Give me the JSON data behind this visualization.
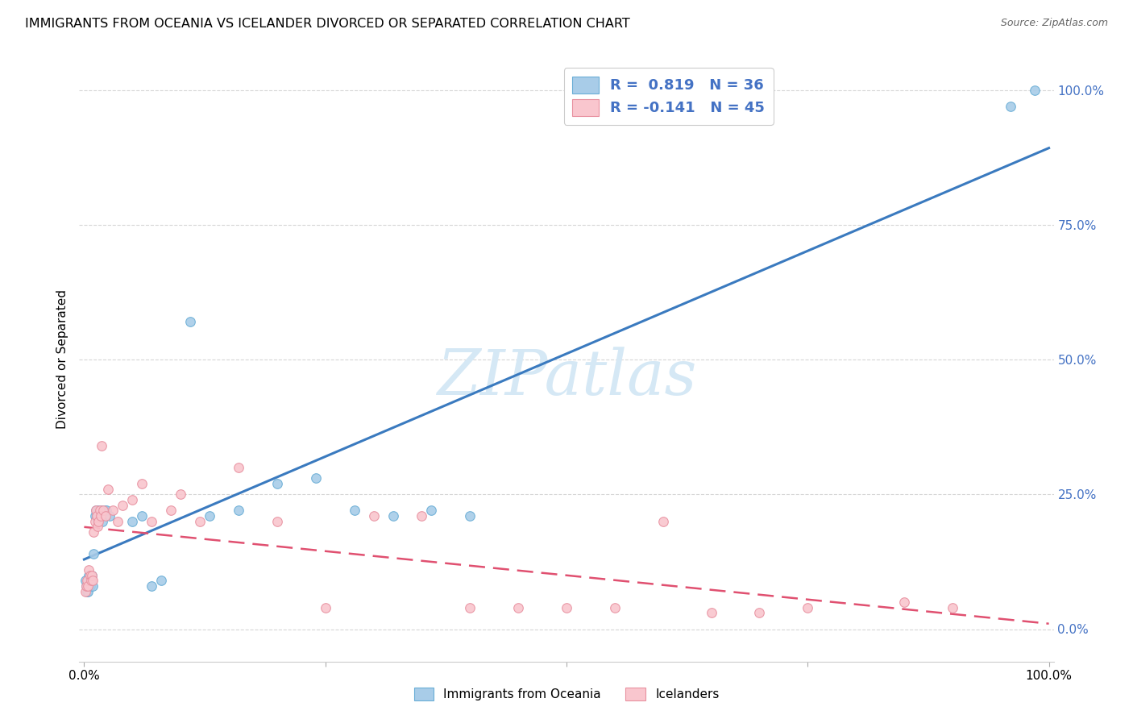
{
  "title": "IMMIGRANTS FROM OCEANIA VS ICELANDER DIVORCED OR SEPARATED CORRELATION CHART",
  "source": "Source: ZipAtlas.com",
  "ylabel": "Divorced or Separated",
  "legend_label_blue": "Immigrants from Oceania",
  "legend_label_pink": "Icelanders",
  "blue_scatter_color": "#a8cce8",
  "blue_edge_color": "#6aaed6",
  "blue_line_color": "#3a7abf",
  "pink_scatter_color": "#f9c6ce",
  "pink_edge_color": "#e891a0",
  "pink_line_color": "#e05070",
  "watermark_color": "#d5e8f5",
  "grid_color": "#cccccc",
  "bg_color": "#ffffff",
  "right_tick_color": "#4472C4",
  "marker_size": 70,
  "blue_x": [
    0.001,
    0.002,
    0.003,
    0.004,
    0.005,
    0.006,
    0.007,
    0.008,
    0.009,
    0.01,
    0.011,
    0.012,
    0.013,
    0.014,
    0.015,
    0.016,
    0.018,
    0.019,
    0.021,
    0.023,
    0.026,
    0.11,
    0.13,
    0.16,
    0.2,
    0.24,
    0.28,
    0.32,
    0.36,
    0.4,
    0.96,
    0.985,
    0.05,
    0.06,
    0.07,
    0.08
  ],
  "blue_y": [
    0.09,
    0.08,
    0.07,
    0.07,
    0.1,
    0.08,
    0.09,
    0.1,
    0.08,
    0.14,
    0.21,
    0.22,
    0.21,
    0.2,
    0.22,
    0.21,
    0.22,
    0.2,
    0.22,
    0.22,
    0.21,
    0.57,
    0.21,
    0.22,
    0.27,
    0.28,
    0.22,
    0.21,
    0.22,
    0.21,
    0.97,
    1.0,
    0.2,
    0.21,
    0.08,
    0.09
  ],
  "pink_x": [
    0.001,
    0.002,
    0.003,
    0.004,
    0.005,
    0.006,
    0.007,
    0.008,
    0.009,
    0.01,
    0.011,
    0.012,
    0.013,
    0.014,
    0.015,
    0.016,
    0.017,
    0.018,
    0.02,
    0.022,
    0.025,
    0.03,
    0.035,
    0.04,
    0.05,
    0.06,
    0.07,
    0.09,
    0.1,
    0.12,
    0.16,
    0.2,
    0.25,
    0.3,
    0.35,
    0.4,
    0.45,
    0.5,
    0.55,
    0.6,
    0.65,
    0.7,
    0.75,
    0.85,
    0.9
  ],
  "pink_y": [
    0.07,
    0.08,
    0.09,
    0.08,
    0.11,
    0.1,
    0.09,
    0.1,
    0.09,
    0.18,
    0.2,
    0.22,
    0.21,
    0.19,
    0.2,
    0.22,
    0.21,
    0.34,
    0.22,
    0.21,
    0.26,
    0.22,
    0.2,
    0.23,
    0.24,
    0.27,
    0.2,
    0.22,
    0.25,
    0.2,
    0.3,
    0.2,
    0.04,
    0.21,
    0.21,
    0.04,
    0.04,
    0.04,
    0.04,
    0.2,
    0.03,
    0.03,
    0.04,
    0.05,
    0.04
  ],
  "xlim": [
    -0.005,
    1.005
  ],
  "ylim": [
    -0.06,
    1.06
  ],
  "xticks": [
    0.0,
    0.25,
    0.5,
    0.75,
    1.0
  ],
  "xtick_labels": [
    "0.0%",
    "",
    "",
    "",
    "100.0%"
  ],
  "yticks": [
    0.0,
    0.25,
    0.5,
    0.75,
    1.0
  ],
  "ytick_labels_right": [
    "0.0%",
    "25.0%",
    "50.0%",
    "75.0%",
    "100.0%"
  ]
}
